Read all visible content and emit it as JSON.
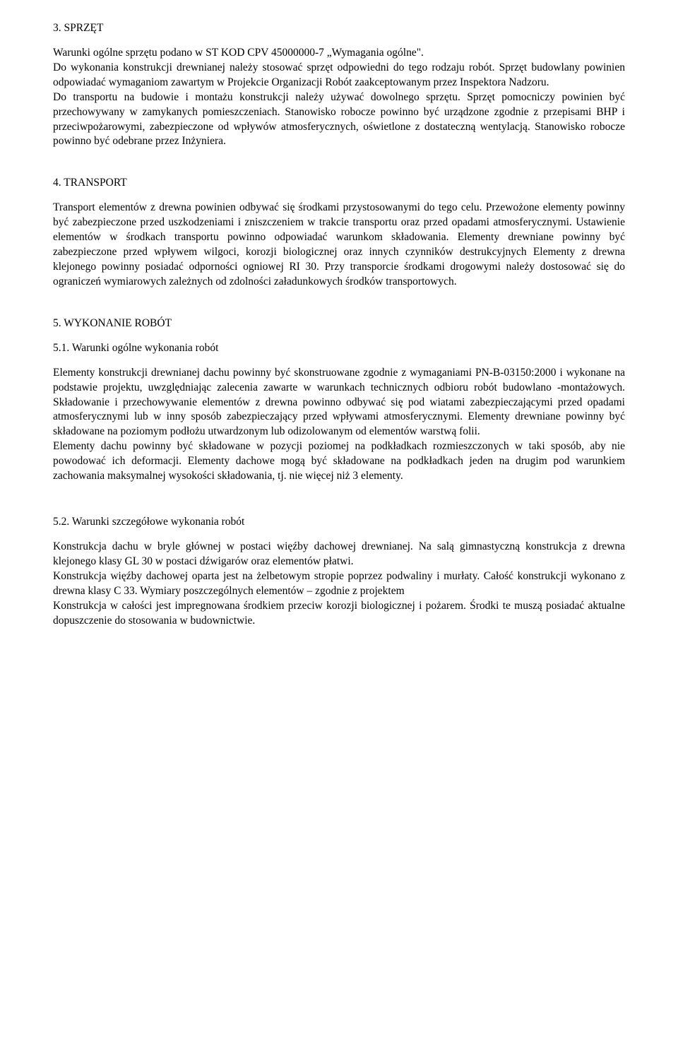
{
  "s3": {
    "heading": "3.    SPRZĘT",
    "p1": "Warunki ogólne sprzętu podano w ST KOD CPV 45000000-7 „Wymagania ogólne\".",
    "p2": "Do wykonania konstrukcji drewnianej należy stosować sprzęt odpowiedni do tego rodzaju robót. Sprzęt budowlany powinien odpowiadać wymaganiom zawartym w Projekcie Organizacji Robót zaakceptowanym przez Inspektora Nadzoru.",
    "p3": "Do transportu na budowie i montażu konstrukcji należy używać dowolnego sprzętu. Sprzęt pomocniczy powinien być przechowywany w zamykanych pomieszczeniach. Stanowisko robocze powinno być urządzone zgodnie z przepisami BHP i przeciwpożarowymi, zabezpieczone od wpływów atmosferycznych, oświetlone z dostateczną wentylacją. Stanowisko robocze powinno być odebrane przez Inżyniera."
  },
  "s4": {
    "heading": "4.    TRANSPORT",
    "p1": "Transport elementów z drewna powinien odbywać się środkami przystosowanymi do tego celu. Przewożone elementy powinny być zabezpieczone przed uszkodzeniami i zniszczeniem w trakcie transportu oraz przed opadami atmosferycznymi. Ustawienie elementów w środkach transportu powinno odpowiadać warunkom składowania. Elementy drewniane powinny być zabezpieczone przed wpływem wilgoci, korozji biologicznej oraz innych czynników destrukcyjnych Elementy z drewna klejonego powinny posiadać odporności ogniowej RI 30. Przy transporcie środkami drogowymi należy dostosować się do ograniczeń wymiarowych zależnych od zdolności załadunkowych środków transportowych."
  },
  "s5": {
    "heading": "5.    WYKONANIE ROBÓT",
    "sub51": "5.1.   Warunki ogólne wykonania robót",
    "p51a": "Elementy konstrukcji drewnianej dachu powinny być skonstruowane zgodnie z wymaganiami PN-B-03150:2000 i wykonane na podstawie projektu, uwzględniając zalecenia zawarte w warunkach technicznych odbioru robót budowlano -montażowych. Składowanie i przechowywanie elementów z drewna powinno odbywać się pod wiatami zabezpieczającymi przed opadami atmosferycznymi lub w inny sposób zabezpieczający przed wpływami atmosferycznymi. Elementy drewniane powinny być składowane na poziomym podłożu utwardzonym lub odizolowanym od elementów warstwą folii.",
    "p51b": "Elementy dachu powinny być składowane w pozycji poziomej na podkładkach rozmieszczonych w taki sposób, aby nie powodować ich deformacji. Elementy dachowe mogą być składowane na podkładkach jeden na drugim pod warunkiem zachowania maksymalnej wysokości składowania, tj. nie więcej niż 3 elementy.",
    "sub52": "5.2.   Warunki szczegółowe wykonania robót",
    "p52a": "Konstrukcja dachu w bryle głównej w postaci więźby dachowej drewnianej. Na salą gimnastyczną  konstrukcja  z drewna klejonego klasy GL 30 w postaci dźwigarów oraz elementów płatwi.",
    "p52b": "Konstrukcja więźby dachowej oparta jest na żelbetowym stropie poprzez podwaliny i murłaty.  Całość konstrukcji wykonano z drewna klasy C 33. Wymiary poszczególnych elementów – zgodnie z projektem",
    "p52c": "Konstrukcja w całości jest impregnowana środkiem przeciw korozji biologicznej i pożarem.  Środki te muszą posiadać aktualne dopuszczenie do stosowania w budownictwie."
  }
}
